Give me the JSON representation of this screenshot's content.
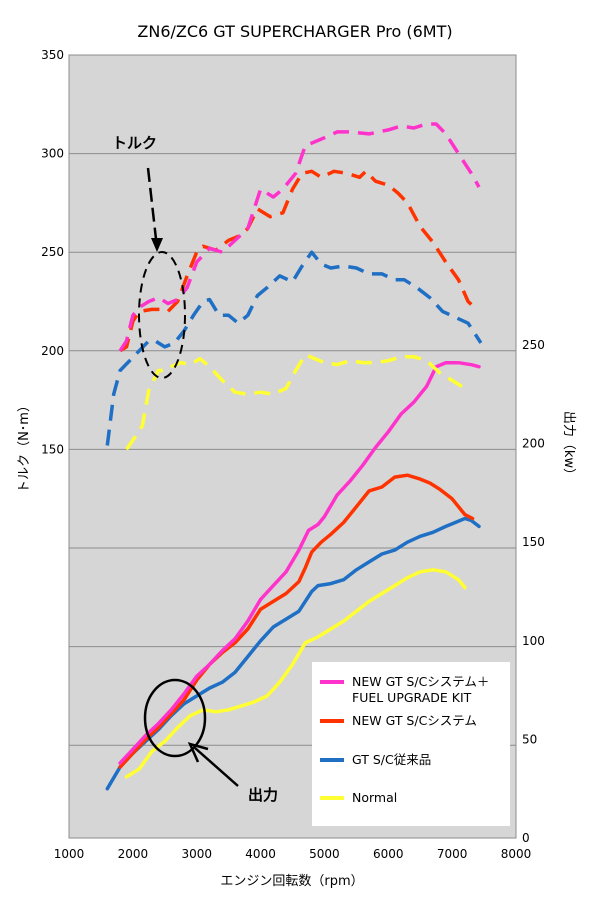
{
  "chart_data": {
    "type": "line",
    "title": "ZN6/ZC6 GT SUPERCHARGER Pro (6MT)",
    "xlabel": "エンジン回転数（rpm）",
    "ylabel_left": "トルク（N･m）",
    "ylabel_right": "出力（kw）",
    "xlim": [
      1000,
      8000
    ],
    "x_ticks": [
      "1000",
      "2000",
      "3000",
      "4000",
      "5000",
      "6000",
      "7000",
      "8000"
    ],
    "y_left_ticks": [
      "150",
      "200",
      "250",
      "300",
      "350"
    ],
    "y_right_ticks": [
      "0",
      "50",
      "100",
      "150",
      "200",
      "250"
    ],
    "grid": true,
    "legend_position": "bottom-right",
    "annotations": {
      "torque": "トルク",
      "power": "出力"
    },
    "series": [
      {
        "name": "NEW GT S/Cシステム＋ FUEL UPGRADE KIT",
        "legend_lines": [
          "NEW GT S/Cシステム＋",
          "FUEL UPGRADE KIT"
        ],
        "color": "#ff33cc",
        "torque": [
          [
            1800,
            200
          ],
          [
            1900,
            205
          ],
          [
            2000,
            218
          ],
          [
            2100,
            222
          ],
          [
            2250,
            225
          ],
          [
            2400,
            227
          ],
          [
            2550,
            224
          ],
          [
            2700,
            226
          ],
          [
            2850,
            232
          ],
          [
            3000,
            245
          ],
          [
            3200,
            252
          ],
          [
            3400,
            250
          ],
          [
            3600,
            256
          ],
          [
            3800,
            262
          ],
          [
            4000,
            282
          ],
          [
            4200,
            278
          ],
          [
            4350,
            282
          ],
          [
            4550,
            290
          ],
          [
            4700,
            304
          ],
          [
            4850,
            306
          ],
          [
            5000,
            308
          ],
          [
            5200,
            311
          ],
          [
            5400,
            311
          ],
          [
            5700,
            310
          ],
          [
            6000,
            312
          ],
          [
            6200,
            314
          ],
          [
            6400,
            313
          ],
          [
            6600,
            315
          ],
          [
            6750,
            315
          ],
          [
            6900,
            310
          ],
          [
            7100,
            300
          ],
          [
            7300,
            290
          ],
          [
            7420,
            283
          ]
        ],
        "power": [
          [
            1800,
            38
          ],
          [
            2000,
            45
          ],
          [
            2200,
            52
          ],
          [
            2400,
            58
          ],
          [
            2600,
            65
          ],
          [
            2800,
            73
          ],
          [
            3000,
            82
          ],
          [
            3200,
            88
          ],
          [
            3400,
            95
          ],
          [
            3600,
            101
          ],
          [
            3800,
            110
          ],
          [
            4000,
            121
          ],
          [
            4200,
            128
          ],
          [
            4400,
            135
          ],
          [
            4600,
            146
          ],
          [
            4750,
            156
          ],
          [
            4900,
            159
          ],
          [
            5000,
            163
          ],
          [
            5200,
            174
          ],
          [
            5400,
            181
          ],
          [
            5600,
            189
          ],
          [
            5800,
            198
          ],
          [
            6000,
            206
          ],
          [
            6200,
            215
          ],
          [
            6400,
            221
          ],
          [
            6600,
            229
          ],
          [
            6750,
            239
          ],
          [
            6900,
            241
          ],
          [
            7100,
            241
          ],
          [
            7300,
            240
          ],
          [
            7420,
            239
          ]
        ]
      },
      {
        "name": "NEW GT S/Cシステム",
        "color": "#ff3300",
        "torque": [
          [
            1800,
            200
          ],
          [
            1900,
            202
          ],
          [
            2000,
            215
          ],
          [
            2100,
            220
          ],
          [
            2300,
            221
          ],
          [
            2450,
            221
          ],
          [
            2550,
            220
          ],
          [
            2700,
            225
          ],
          [
            2850,
            238
          ],
          [
            3000,
            250
          ],
          [
            3100,
            253
          ],
          [
            3300,
            251
          ],
          [
            3500,
            256
          ],
          [
            3650,
            258
          ],
          [
            3800,
            262
          ],
          [
            3950,
            272
          ],
          [
            4150,
            268
          ],
          [
            4350,
            270
          ],
          [
            4500,
            282
          ],
          [
            4650,
            290
          ],
          [
            4800,
            291
          ],
          [
            4950,
            288
          ],
          [
            5150,
            291
          ],
          [
            5350,
            290
          ],
          [
            5550,
            288
          ],
          [
            5650,
            291
          ],
          [
            5800,
            286
          ],
          [
            6000,
            284
          ],
          [
            6150,
            280
          ],
          [
            6300,
            275
          ],
          [
            6500,
            263
          ],
          [
            6700,
            255
          ],
          [
            6900,
            245
          ],
          [
            7100,
            236
          ],
          [
            7250,
            225
          ],
          [
            7350,
            222
          ]
        ],
        "power": [
          [
            1800,
            36
          ],
          [
            2000,
            43
          ],
          [
            2200,
            50
          ],
          [
            2400,
            56
          ],
          [
            2600,
            63
          ],
          [
            2800,
            70
          ],
          [
            3000,
            80
          ],
          [
            3200,
            88
          ],
          [
            3400,
            94
          ],
          [
            3600,
            99
          ],
          [
            3800,
            106
          ],
          [
            4000,
            116
          ],
          [
            4200,
            120
          ],
          [
            4400,
            124
          ],
          [
            4600,
            130
          ],
          [
            4700,
            137
          ],
          [
            4800,
            145
          ],
          [
            4950,
            150
          ],
          [
            5100,
            154
          ],
          [
            5300,
            160
          ],
          [
            5500,
            168
          ],
          [
            5700,
            176
          ],
          [
            5900,
            178
          ],
          [
            6100,
            183
          ],
          [
            6300,
            184
          ],
          [
            6500,
            182
          ],
          [
            6650,
            180
          ],
          [
            6800,
            177
          ],
          [
            7000,
            172
          ],
          [
            7200,
            164
          ],
          [
            7320,
            162
          ]
        ]
      },
      {
        "name": "GT S/C従来品",
        "color": "#1f6fc5",
        "torque": [
          [
            1600,
            152
          ],
          [
            1700,
            178
          ],
          [
            1800,
            190
          ],
          [
            1950,
            195
          ],
          [
            2100,
            200
          ],
          [
            2250,
            205
          ],
          [
            2350,
            205
          ],
          [
            2500,
            202
          ],
          [
            2650,
            204
          ],
          [
            2800,
            210
          ],
          [
            2950,
            218
          ],
          [
            3100,
            225
          ],
          [
            3200,
            226
          ],
          [
            3350,
            218
          ],
          [
            3500,
            218
          ],
          [
            3650,
            214
          ],
          [
            3800,
            218
          ],
          [
            3950,
            228
          ],
          [
            4100,
            232
          ],
          [
            4300,
            238
          ],
          [
            4500,
            235
          ],
          [
            4650,
            243
          ],
          [
            4800,
            250
          ],
          [
            4950,
            244
          ],
          [
            5100,
            242
          ],
          [
            5300,
            243
          ],
          [
            5500,
            242
          ],
          [
            5700,
            239
          ],
          [
            5900,
            239
          ],
          [
            6100,
            236
          ],
          [
            6250,
            236
          ],
          [
            6450,
            232
          ],
          [
            6650,
            227
          ],
          [
            6850,
            220
          ],
          [
            7050,
            217
          ],
          [
            7250,
            214
          ],
          [
            7350,
            209
          ],
          [
            7450,
            204
          ]
        ],
        "power": [
          [
            1600,
            25
          ],
          [
            1800,
            36
          ],
          [
            2000,
            43
          ],
          [
            2200,
            49
          ],
          [
            2400,
            55
          ],
          [
            2600,
            62
          ],
          [
            2800,
            68
          ],
          [
            3000,
            72
          ],
          [
            3200,
            76
          ],
          [
            3400,
            79
          ],
          [
            3600,
            84
          ],
          [
            3800,
            92
          ],
          [
            4000,
            100
          ],
          [
            4200,
            107
          ],
          [
            4400,
            111
          ],
          [
            4600,
            115
          ],
          [
            4800,
            125
          ],
          [
            4900,
            128
          ],
          [
            5100,
            129
          ],
          [
            5300,
            131
          ],
          [
            5500,
            136
          ],
          [
            5700,
            140
          ],
          [
            5900,
            144
          ],
          [
            6100,
            146
          ],
          [
            6300,
            150
          ],
          [
            6500,
            153
          ],
          [
            6700,
            155
          ],
          [
            6900,
            158
          ],
          [
            7050,
            160
          ],
          [
            7200,
            162
          ],
          [
            7300,
            161
          ],
          [
            7420,
            158
          ]
        ]
      },
      {
        "name": "Normal",
        "color": "#ffff33",
        "torque": [
          [
            1900,
            150
          ],
          [
            2050,
            157
          ],
          [
            2150,
            162
          ],
          [
            2250,
            180
          ],
          [
            2400,
            190
          ],
          [
            2500,
            190
          ],
          [
            2600,
            192
          ],
          [
            2750,
            194
          ],
          [
            2900,
            193
          ],
          [
            3050,
            196
          ],
          [
            3200,
            192
          ],
          [
            3400,
            185
          ],
          [
            3600,
            179
          ],
          [
            3800,
            178
          ],
          [
            4000,
            179
          ],
          [
            4200,
            178
          ],
          [
            4400,
            181
          ],
          [
            4550,
            190
          ],
          [
            4700,
            198
          ],
          [
            4850,
            196
          ],
          [
            5000,
            194
          ],
          [
            5200,
            193
          ],
          [
            5400,
            195
          ],
          [
            5600,
            194
          ],
          [
            5800,
            194
          ],
          [
            6000,
            195
          ],
          [
            6200,
            197
          ],
          [
            6400,
            197
          ],
          [
            6600,
            195
          ],
          [
            6800,
            189
          ],
          [
            7000,
            185
          ],
          [
            7200,
            181
          ]
        ],
        "power": [
          [
            1900,
            31
          ],
          [
            2100,
            35
          ],
          [
            2300,
            44
          ],
          [
            2500,
            49
          ],
          [
            2700,
            56
          ],
          [
            2900,
            62
          ],
          [
            3100,
            65
          ],
          [
            3300,
            64
          ],
          [
            3500,
            65
          ],
          [
            3700,
            67
          ],
          [
            3900,
            69
          ],
          [
            4100,
            72
          ],
          [
            4300,
            79
          ],
          [
            4500,
            88
          ],
          [
            4700,
            99
          ],
          [
            4900,
            102
          ],
          [
            5100,
            106
          ],
          [
            5300,
            110
          ],
          [
            5500,
            115
          ],
          [
            5700,
            120
          ],
          [
            5900,
            124
          ],
          [
            6100,
            128
          ],
          [
            6300,
            132
          ],
          [
            6500,
            135
          ],
          [
            6700,
            136
          ],
          [
            6900,
            135
          ],
          [
            7100,
            131
          ],
          [
            7200,
            127
          ]
        ]
      }
    ]
  }
}
